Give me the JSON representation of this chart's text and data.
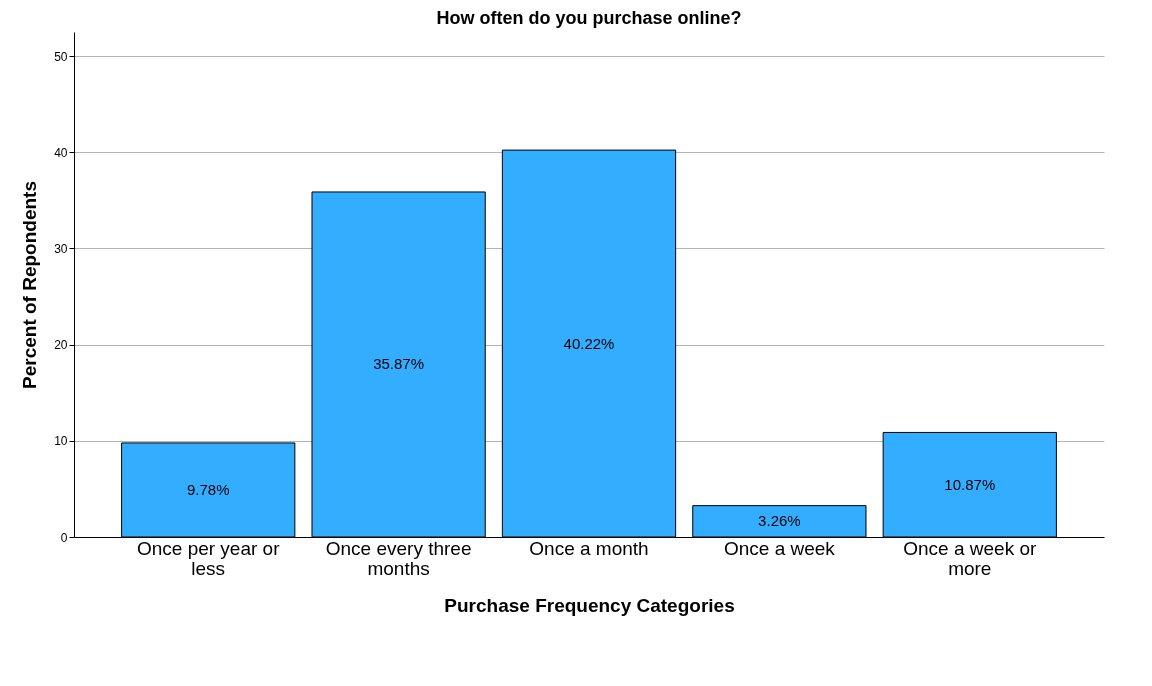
{
  "chart_data": {
    "type": "bar",
    "title": "How often do you purchase online?",
    "xlabel": "Purchase Frequency Categories",
    "ylabel": "Percent of Repondents",
    "categories": [
      "Once per year or less",
      "Once every three months",
      "Once a month",
      "Once a week",
      "Once a week or more"
    ],
    "values": [
      9.78,
      35.87,
      40.22,
      3.26,
      10.87
    ],
    "value_labels": [
      "9.78%",
      "35.87%",
      "40.22%",
      "3.26%",
      "10.87%"
    ],
    "color": "#33adff",
    "ylim": [
      0,
      52.5
    ],
    "yticks": [
      0,
      10,
      20,
      30,
      40,
      50
    ],
    "grid": "y"
  }
}
